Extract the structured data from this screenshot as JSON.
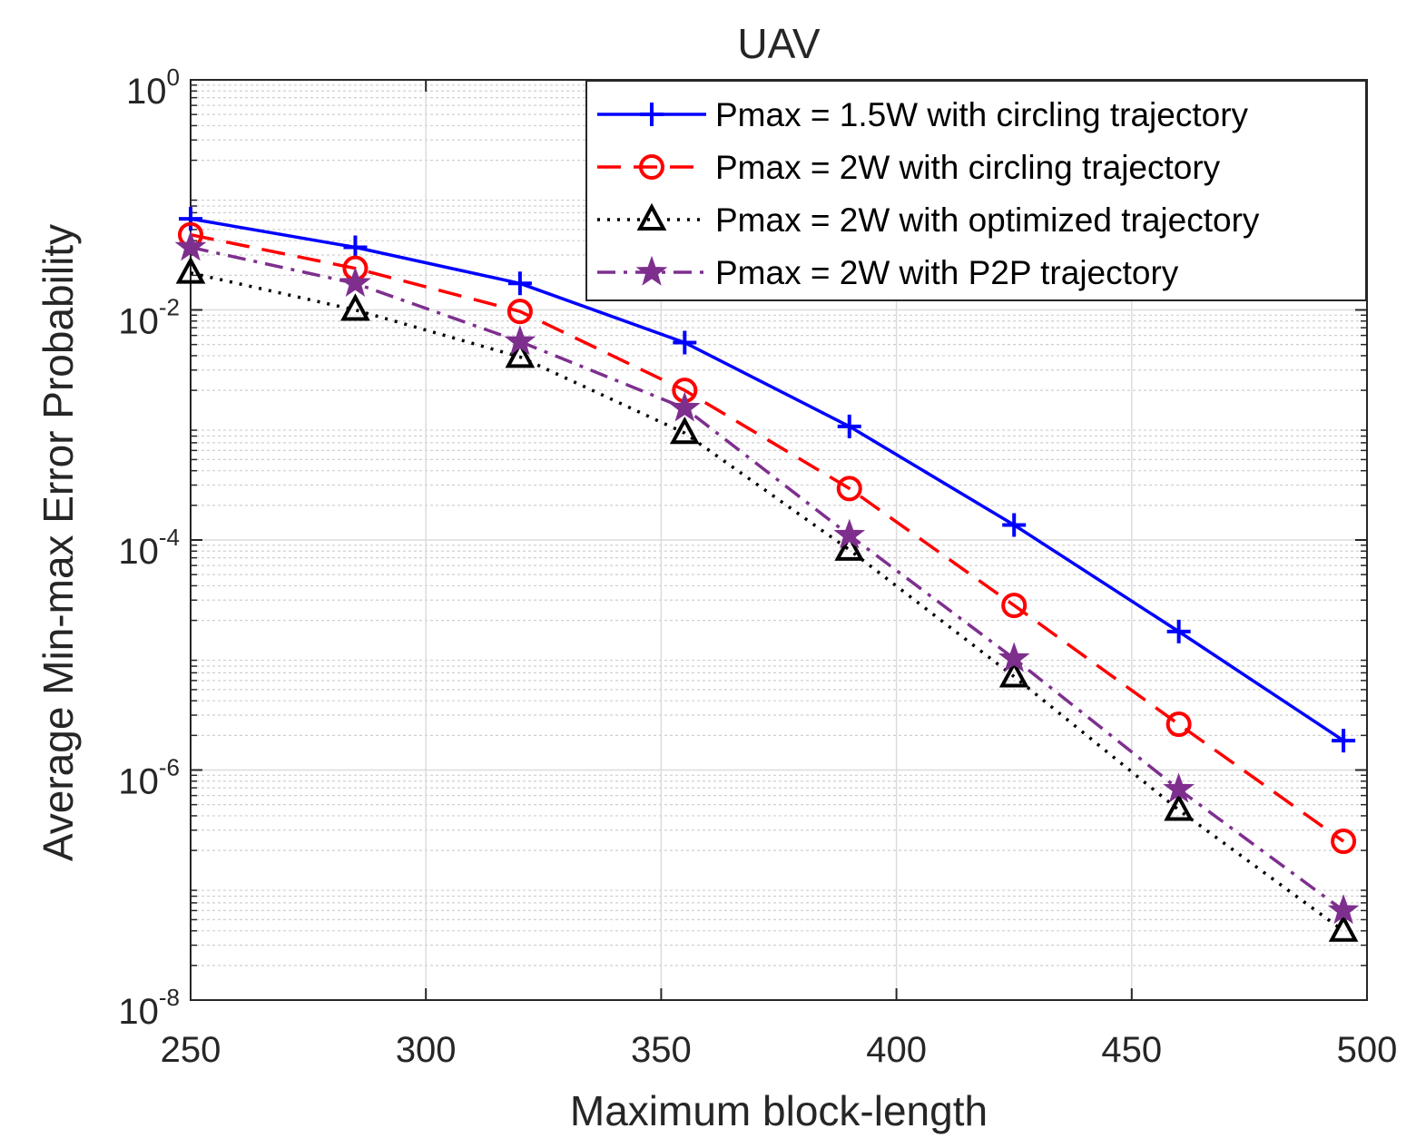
{
  "chart_data": {
    "type": "line",
    "title": "UAV",
    "xlabel": "Maximum block-length",
    "ylabel": "Average Min-max Error Probability",
    "xlim": [
      250,
      500
    ],
    "ylim": [
      1e-08,
      1
    ],
    "yscale": "log",
    "grid": "on",
    "minor_grid": "on",
    "legend_position": "top-right",
    "x_ticks": [
      {
        "value": 250,
        "label": "250"
      },
      {
        "value": 300,
        "label": "300"
      },
      {
        "value": 350,
        "label": "350"
      },
      {
        "value": 400,
        "label": "400"
      },
      {
        "value": 450,
        "label": "450"
      },
      {
        "value": 500,
        "label": "500"
      }
    ],
    "y_ticks": [
      {
        "value": 1,
        "base": "10",
        "exp": "0"
      },
      {
        "value": 0.01,
        "base": "10",
        "exp": "-2"
      },
      {
        "value": 0.0001,
        "base": "10",
        "exp": "-4"
      },
      {
        "value": 1e-06,
        "base": "10",
        "exp": "-6"
      },
      {
        "value": 1e-08,
        "base": "10",
        "exp": "-8"
      }
    ],
    "x": [
      250,
      285,
      320,
      355,
      390,
      425,
      460,
      495
    ],
    "series": [
      {
        "name": "Pmax = 1.5W with circling trajectory",
        "color": "#0000ff",
        "line_style": "solid",
        "marker": "plus",
        "values": [
          0.062,
          0.035,
          0.017,
          0.0052,
          0.00097,
          0.000135,
          1.6e-05,
          1.8e-06
        ]
      },
      {
        "name": "Pmax  = 2W with circling trajectory",
        "color": "#ff0000",
        "line_style": "dashed",
        "marker": "circle",
        "values": [
          0.045,
          0.023,
          0.0097,
          0.002,
          0.00028,
          2.7e-05,
          2.5e-06,
          2.4e-07
        ]
      },
      {
        "name": "Pmax  = 2W with optimized trajectory",
        "color": "#000000",
        "line_style": "dotted",
        "marker": "triangle",
        "values": [
          0.021,
          0.01,
          0.0039,
          0.00085,
          8.2e-05,
          6.5e-06,
          4.5e-07,
          4e-08
        ]
      },
      {
        "name": "Pmax  = 2W with P2P trajectory",
        "color": "#7e2f8e",
        "line_style": "dashdot",
        "marker": "star",
        "values": [
          0.035,
          0.017,
          0.0053,
          0.0014,
          0.00011,
          9.3e-06,
          6.8e-07,
          6e-08
        ]
      }
    ]
  }
}
